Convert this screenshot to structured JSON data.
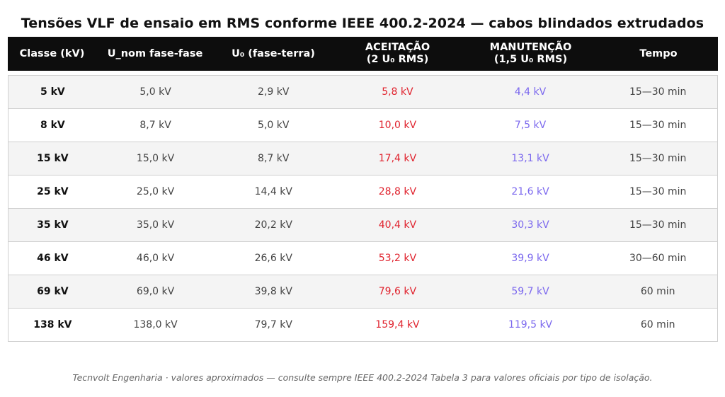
{
  "title": "Tensões VLF de ensaio em RMS conforme IEEE 400.2-2024 — cabos blindados extrudados",
  "headers": {
    "classe": "Classe (kV)",
    "unom": "U_nom fase-fase",
    "u0": "U₀ (fase-terra)",
    "aceitacao_l1": "ACEITAÇÃO",
    "aceitacao_l2": "(2 U₀ RMS)",
    "manutencao_l1": "MANUTENÇÃO",
    "manutencao_l2": "(1,5 U₀ RMS)",
    "tempo": "Tempo"
  },
  "rows": [
    {
      "classe": "5 kV",
      "unom": "5,0 kV",
      "u0": "2,9 kV",
      "aceitacao": "5,8 kV",
      "manutencao": "4,4 kV",
      "tempo": "15—30 min"
    },
    {
      "classe": "8 kV",
      "unom": "8,7 kV",
      "u0": "5,0 kV",
      "aceitacao": "10,0 kV",
      "manutencao": "7,5 kV",
      "tempo": "15—30 min"
    },
    {
      "classe": "15 kV",
      "unom": "15,0 kV",
      "u0": "8,7 kV",
      "aceitacao": "17,4 kV",
      "manutencao": "13,1 kV",
      "tempo": "15—30 min"
    },
    {
      "classe": "25 kV",
      "unom": "25,0 kV",
      "u0": "14,4 kV",
      "aceitacao": "28,8 kV",
      "manutencao": "21,6 kV",
      "tempo": "15—30 min"
    },
    {
      "classe": "35 kV",
      "unom": "35,0 kV",
      "u0": "20,2 kV",
      "aceitacao": "40,4 kV",
      "manutencao": "30,3 kV",
      "tempo": "15—30 min"
    },
    {
      "classe": "46 kV",
      "unom": "46,0 kV",
      "u0": "26,6 kV",
      "aceitacao": "53,2 kV",
      "manutencao": "39,9 kV",
      "tempo": "30—60 min"
    },
    {
      "classe": "69 kV",
      "unom": "69,0 kV",
      "u0": "39,8 kV",
      "aceitacao": "79,6 kV",
      "manutencao": "59,7 kV",
      "tempo": "60 min"
    },
    {
      "classe": "138 kV",
      "unom": "138,0 kV",
      "u0": "79,7 kV",
      "aceitacao": "159,4 kV",
      "manutencao": "119,5 kV",
      "tempo": "60 min"
    }
  ],
  "colors": {
    "header_bg": "#0d0d0d",
    "aceitacao": "#e0232e",
    "manutencao": "#7b68ee",
    "row_alt": "#f4f4f4"
  },
  "footer": "Tecnvolt Engenharia · valores aproximados — consulte sempre IEEE 400.2-2024 Tabela 3 para valores oficiais por tipo de isolação."
}
